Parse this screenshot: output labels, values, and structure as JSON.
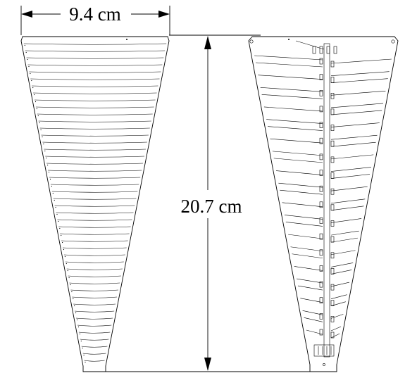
{
  "dimensions": {
    "width_label": "9.4 cm",
    "height_label": "20.7 cm"
  },
  "left_antenna": {
    "strip_count": 46
  },
  "right_antenna": {
    "tooth_count": 18
  },
  "colors": {
    "line": "#000000",
    "background": "#ffffff"
  }
}
